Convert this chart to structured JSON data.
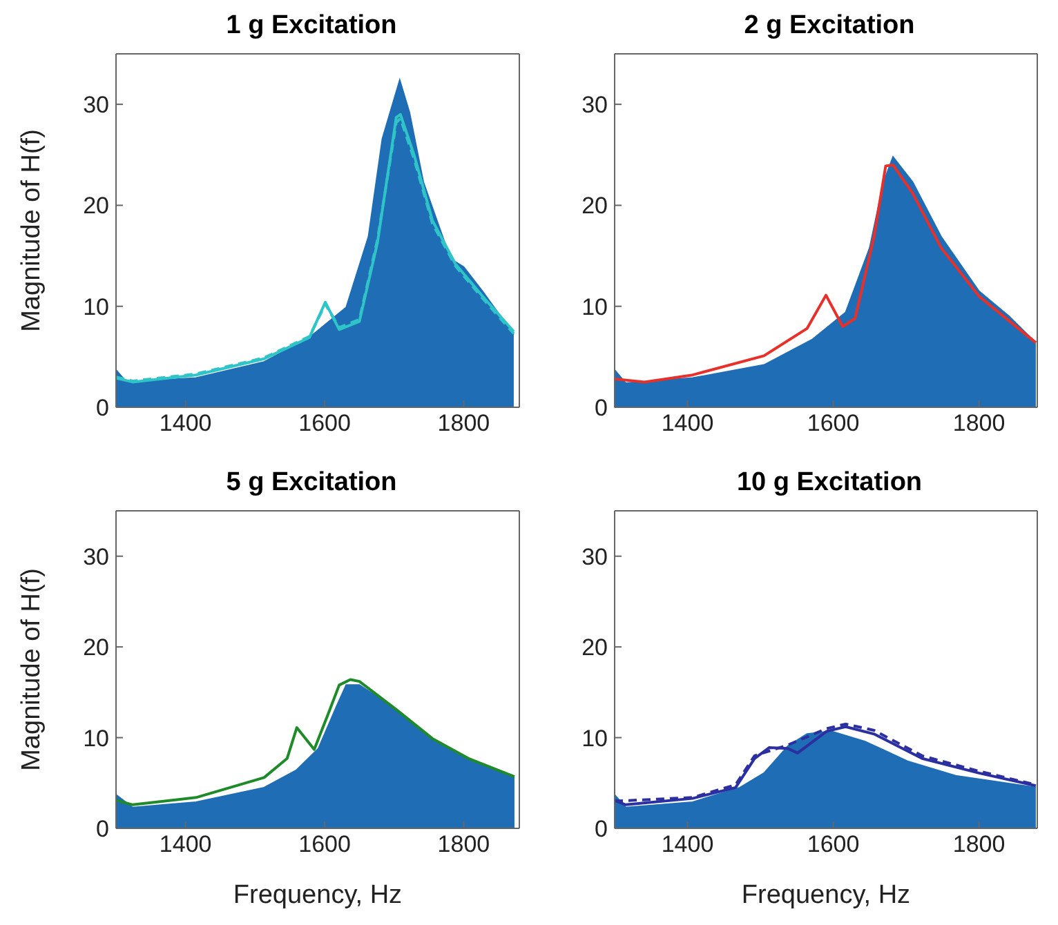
{
  "chart_data": [
    {
      "type": "line",
      "title": "1 g Excitation",
      "ylabel": "Magnitude of H(f)",
      "xlim": [
        1300,
        1880
      ],
      "ylim": [
        0,
        35
      ],
      "xticks": [
        1400,
        1600,
        1800
      ],
      "yticks": [
        0,
        10,
        20,
        30
      ],
      "marker": "none",
      "series": [
        {
          "type": "area",
          "color": "#1f6db5",
          "x": [
            1300,
            1315,
            1415,
            1513,
            1578,
            1631,
            1663,
            1683,
            1708,
            1722,
            1742,
            1781,
            1800,
            1827,
            1872
          ],
          "values": [
            3.7,
            2.5,
            2.9,
            4.5,
            6.9,
            9.9,
            16.9,
            26.6,
            32.4,
            29.2,
            22.3,
            14.7,
            13.9,
            11.5,
            7.2
          ]
        },
        {
          "color": "#2ec4c8",
          "line_style": "solid",
          "x": [
            1300,
            1324,
            1415,
            1513,
            1578,
            1601,
            1621,
            1650,
            1676,
            1703,
            1709,
            1729,
            1755,
            1788,
            1827,
            1872
          ],
          "values": [
            2.9,
            2.5,
            3.2,
            4.8,
            6.9,
            10.4,
            7.7,
            8.5,
            16.3,
            28.7,
            29.0,
            24.9,
            18.5,
            14.2,
            11.0,
            7.5
          ]
        },
        {
          "color": "#2ec4c8",
          "line_style": "dashed",
          "x": [
            1300,
            1324,
            1415,
            1513,
            1578,
            1601,
            1621,
            1650,
            1676,
            1703,
            1709,
            1729,
            1755,
            1788,
            1827,
            1872
          ],
          "values": [
            3.0,
            2.6,
            3.3,
            4.9,
            7.0,
            10.2,
            7.9,
            8.7,
            16.6,
            28.2,
            28.6,
            24.5,
            18.2,
            14.0,
            10.8,
            7.3
          ]
        }
      ]
    },
    {
      "type": "line",
      "title": "2 g Excitation",
      "xlim": [
        1300,
        1880
      ],
      "ylim": [
        0,
        35
      ],
      "xticks": [
        1400,
        1600,
        1800
      ],
      "yticks": [
        0,
        10,
        20,
        30
      ],
      "marker": "none",
      "series": [
        {
          "type": "area",
          "color": "#1f6db5",
          "x": [
            1300,
            1315,
            1407,
            1505,
            1571,
            1617,
            1650,
            1669,
            1682,
            1709,
            1748,
            1800,
            1840,
            1878
          ],
          "values": [
            3.7,
            2.4,
            2.9,
            4.2,
            6.7,
            9.4,
            15.8,
            22.3,
            24.8,
            22.3,
            16.9,
            11.5,
            9.1,
            6.4
          ]
        },
        {
          "color": "#e8302a",
          "line_style": "solid",
          "x": [
            1300,
            1341,
            1407,
            1505,
            1564,
            1590,
            1613,
            1630,
            1656,
            1672,
            1682,
            1709,
            1748,
            1800,
            1878
          ],
          "values": [
            2.8,
            2.5,
            3.2,
            5.1,
            7.8,
            11.1,
            8.0,
            8.8,
            16.9,
            23.9,
            24.0,
            21.2,
            15.8,
            11.0,
            6.4
          ]
        }
      ]
    },
    {
      "type": "line",
      "title": "5 g Excitation",
      "xlabel": "Frequency, Hz",
      "ylabel": "Magnitude of H(f)",
      "xlim": [
        1300,
        1880
      ],
      "ylim": [
        0,
        35
      ],
      "xticks": [
        1400,
        1600,
        1800
      ],
      "yticks": [
        0,
        10,
        20,
        30
      ],
      "marker": "none",
      "series": [
        {
          "type": "area",
          "color": "#1f6db5",
          "x": [
            1300,
            1324,
            1415,
            1513,
            1559,
            1591,
            1618,
            1631,
            1650,
            1703,
            1755,
            1807,
            1873
          ],
          "values": [
            3.7,
            2.3,
            2.9,
            4.5,
            6.4,
            8.8,
            13.6,
            15.8,
            15.8,
            13.1,
            9.9,
            7.7,
            5.6
          ]
        },
        {
          "color": "#1f8a2a",
          "line_style": "solid",
          "x": [
            1300,
            1324,
            1415,
            1513,
            1546,
            1560,
            1585,
            1605,
            1621,
            1637,
            1650,
            1703,
            1755,
            1807,
            1873
          ],
          "values": [
            3.1,
            2.6,
            3.4,
            5.6,
            7.7,
            11.1,
            8.7,
            12.6,
            15.8,
            16.4,
            16.2,
            13.1,
            9.9,
            7.7,
            5.7
          ]
        }
      ]
    },
    {
      "type": "line",
      "title": "10 g Excitation",
      "xlabel": "Frequency, Hz",
      "xlim": [
        1300,
        1880
      ],
      "ylim": [
        0,
        35
      ],
      "xticks": [
        1400,
        1600,
        1800
      ],
      "yticks": [
        0,
        10,
        20,
        30
      ],
      "marker": "none",
      "series": [
        {
          "type": "area",
          "color": "#1f6db5",
          "x": [
            1300,
            1315,
            1407,
            1472,
            1505,
            1538,
            1564,
            1597,
            1643,
            1702,
            1768,
            1878
          ],
          "values": [
            3.7,
            2.3,
            2.9,
            4.5,
            6.1,
            9.1,
            10.4,
            10.7,
            9.6,
            7.4,
            5.8,
            4.5
          ]
        },
        {
          "color": "#2b2fa0",
          "line_style": "solid",
          "x": [
            1300,
            1315,
            1407,
            1466,
            1492,
            1512,
            1538,
            1551,
            1591,
            1617,
            1656,
            1722,
            1800,
            1878
          ],
          "values": [
            3.1,
            2.6,
            3.3,
            4.5,
            7.7,
            8.9,
            8.8,
            8.3,
            10.7,
            11.2,
            10.4,
            7.7,
            6.1,
            4.7
          ]
        },
        {
          "color": "#2b2fa0",
          "line_style": "dashed",
          "x": [
            1300,
            1407,
            1466,
            1492,
            1538,
            1591,
            1617,
            1656,
            1722,
            1800,
            1878
          ],
          "values": [
            3.0,
            3.4,
            4.8,
            8.0,
            9.2,
            11.0,
            11.5,
            10.8,
            8.0,
            6.3,
            4.8
          ]
        }
      ]
    }
  ]
}
